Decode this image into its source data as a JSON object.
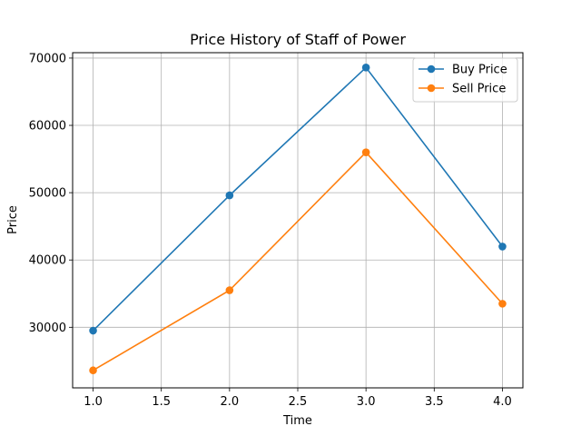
{
  "chart_data": {
    "type": "line",
    "title": "Price History of Staff of Power",
    "xlabel": "Time",
    "ylabel": "Price",
    "x": [
      1.0,
      2.0,
      3.0,
      4.0
    ],
    "xlim": [
      0.85,
      4.15
    ],
    "ylim": [
      21000,
      70800
    ],
    "xticks": [
      1.0,
      1.5,
      2.0,
      2.5,
      3.0,
      3.5,
      4.0
    ],
    "xtick_labels": [
      "1.0",
      "1.5",
      "2.0",
      "2.5",
      "3.0",
      "3.5",
      "4.0"
    ],
    "yticks": [
      30000,
      40000,
      50000,
      60000,
      70000
    ],
    "ytick_labels": [
      "30000",
      "40000",
      "50000",
      "60000",
      "70000"
    ],
    "grid": true,
    "legend_position": "top-right",
    "series": [
      {
        "name": "Buy Price",
        "color": "#1f77b4",
        "values": [
          29500,
          49600,
          68600,
          42000
        ]
      },
      {
        "name": "Sell Price",
        "color": "#ff7f0e",
        "values": [
          23600,
          35500,
          56000,
          33500
        ]
      }
    ]
  }
}
